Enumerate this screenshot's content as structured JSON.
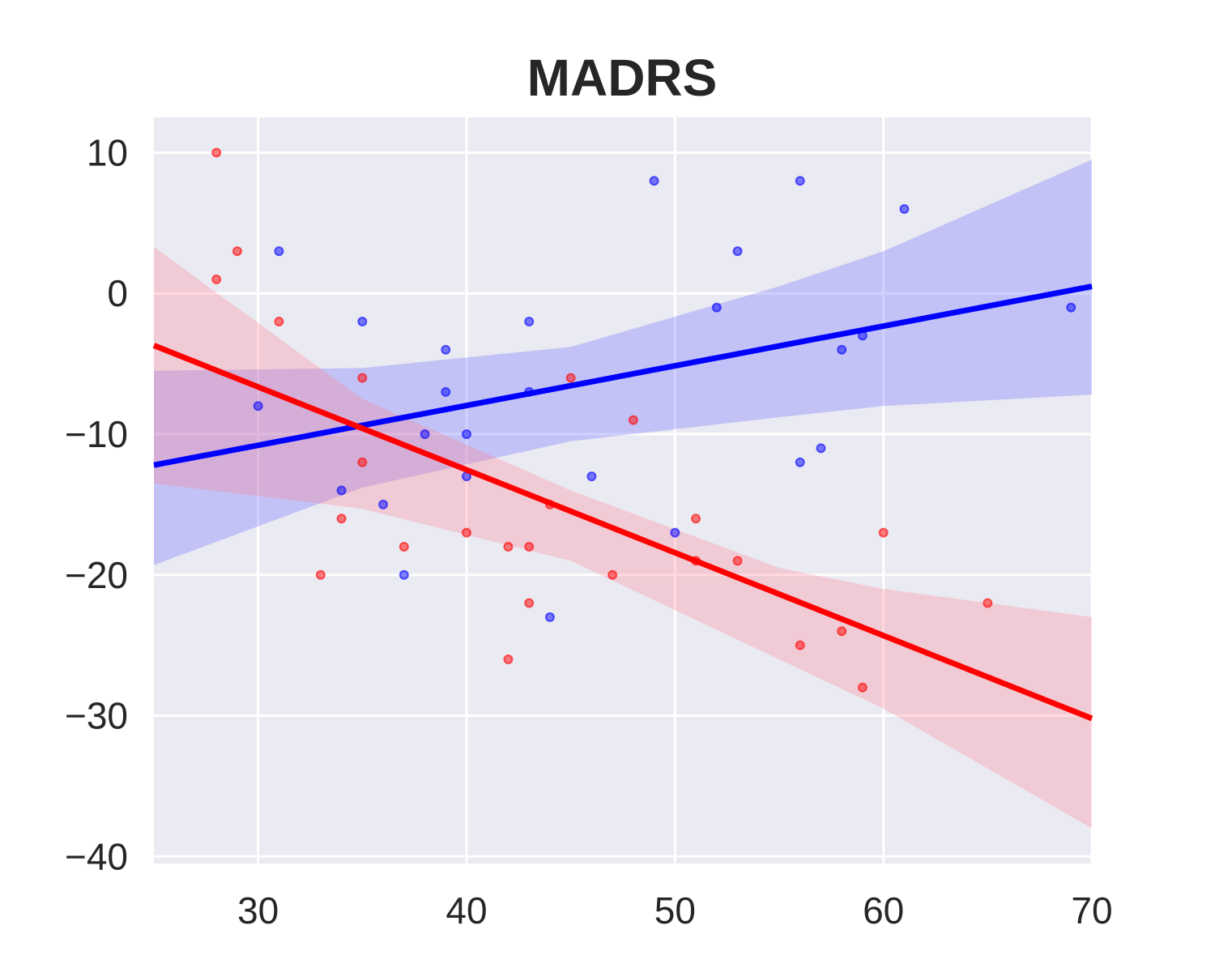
{
  "chart_data": {
    "type": "scatter",
    "title": "MADRS",
    "xlabel": "",
    "ylabel": "",
    "xlim": [
      25,
      70
    ],
    "ylim": [
      -40.5,
      12.5
    ],
    "xticks": [
      30,
      40,
      50,
      60,
      70
    ],
    "yticks": [
      10,
      0,
      -10,
      -20,
      -30,
      -40
    ],
    "xtick_labels": [
      "30",
      "40",
      "50",
      "60",
      "70"
    ],
    "ytick_labels": [
      "10",
      "0",
      "−10",
      "−20",
      "−30",
      "−40"
    ],
    "grid": true,
    "legend": "none",
    "background_color": "#eaeaf2",
    "series": [
      {
        "color": "#0000ff",
        "band_color": "#6666ff",
        "points": [
          [
            30,
            -8
          ],
          [
            31,
            3
          ],
          [
            34,
            -14
          ],
          [
            35,
            -2
          ],
          [
            36,
            -15
          ],
          [
            37,
            -20
          ],
          [
            38,
            -10
          ],
          [
            39,
            -4
          ],
          [
            39,
            -7
          ],
          [
            40,
            -10
          ],
          [
            40,
            -13
          ],
          [
            43,
            -2
          ],
          [
            43,
            -7
          ],
          [
            44,
            -23
          ],
          [
            46,
            -13
          ],
          [
            49,
            8
          ],
          [
            50,
            -17
          ],
          [
            52,
            -1
          ],
          [
            53,
            3
          ],
          [
            56,
            8
          ],
          [
            56,
            -12
          ],
          [
            57,
            -11
          ],
          [
            58,
            -4
          ],
          [
            59,
            -3
          ],
          [
            61,
            6
          ],
          [
            69,
            -1
          ]
        ],
        "regression": {
          "x": [
            25,
            70
          ],
          "y": [
            -12.2,
            0.5
          ]
        },
        "ci_band": {
          "x": [
            25,
            35,
            45,
            55,
            60,
            70
          ],
          "upper": [
            -5.5,
            -5.3,
            -3.8,
            0.5,
            3.0,
            9.5
          ],
          "lower": [
            -19.3,
            -13.8,
            -10.5,
            -8.8,
            -8.0,
            -7.2
          ]
        }
      },
      {
        "color": "#ff0000",
        "band_color": "#ff8090",
        "points": [
          [
            28,
            10
          ],
          [
            28,
            1
          ],
          [
            29,
            3
          ],
          [
            31,
            -2
          ],
          [
            33,
            -20
          ],
          [
            34,
            -16
          ],
          [
            35,
            -6
          ],
          [
            35,
            -12
          ],
          [
            37,
            -18
          ],
          [
            40,
            -17
          ],
          [
            42,
            -18
          ],
          [
            42,
            -26
          ],
          [
            43,
            -18
          ],
          [
            43,
            -22
          ],
          [
            44,
            -15
          ],
          [
            45,
            -6
          ],
          [
            47,
            -20
          ],
          [
            48,
            -9
          ],
          [
            51,
            -16
          ],
          [
            51,
            -19
          ],
          [
            53,
            -19
          ],
          [
            56,
            -25
          ],
          [
            58,
            -24
          ],
          [
            59,
            -28
          ],
          [
            60,
            -17
          ],
          [
            65,
            -22
          ]
        ],
        "regression": {
          "x": [
            25,
            70
          ],
          "y": [
            -3.7,
            -30.2
          ]
        },
        "ci_band": {
          "x": [
            25,
            35,
            45,
            55,
            60,
            70
          ],
          "upper": [
            3.3,
            -7.5,
            -14.0,
            -19.5,
            -21.0,
            -23.0
          ],
          "lower": [
            -13.5,
            -15.3,
            -19.0,
            -26.0,
            -29.5,
            -38.0
          ]
        }
      }
    ]
  }
}
